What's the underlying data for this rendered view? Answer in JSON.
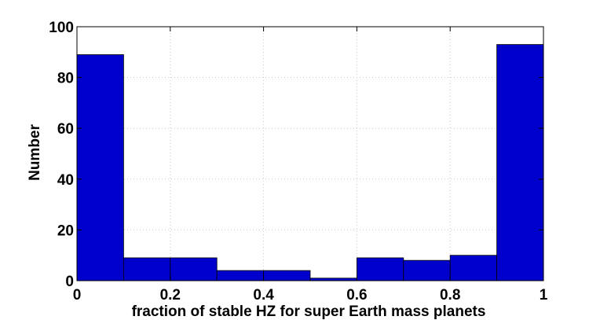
{
  "chart_data": {
    "type": "bar",
    "title": "",
    "xlabel": "fraction of stable HZ for super Earth mass planets",
    "ylabel": "Number",
    "xlim": [
      0,
      1
    ],
    "ylim": [
      0,
      100
    ],
    "grid": true,
    "bin_edges": [
      0,
      0.1,
      0.2,
      0.3,
      0.4,
      0.5,
      0.6,
      0.7,
      0.8,
      0.9,
      1.0
    ],
    "values": [
      89,
      9,
      9,
      4,
      4,
      1,
      9,
      8,
      10,
      93
    ],
    "x_ticks": [
      0,
      0.2,
      0.4,
      0.6,
      0.8,
      1
    ],
    "x_tick_labels": [
      "0",
      "0.2",
      "0.4",
      "0.6",
      "0.8",
      "1"
    ],
    "y_ticks": [
      0,
      20,
      40,
      60,
      80,
      100
    ],
    "y_tick_labels": [
      "0",
      "20",
      "40",
      "60",
      "80",
      "100"
    ],
    "bar_color": "#0000cc",
    "bar_edge_color": "#000000",
    "grid_color": "#c8c8c8"
  }
}
